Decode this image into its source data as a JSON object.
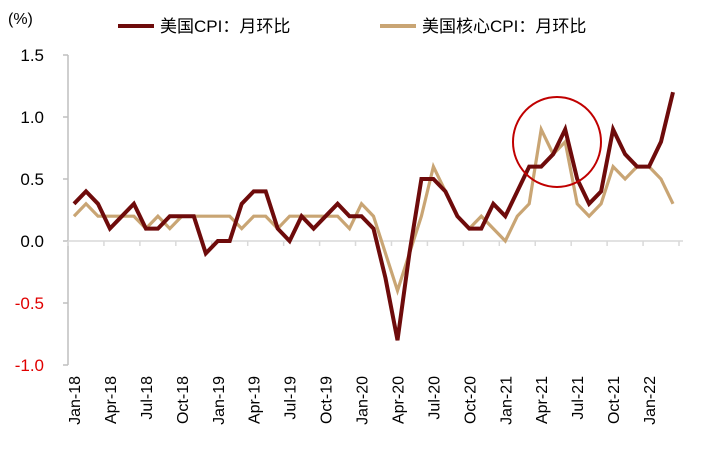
{
  "chart_data": {
    "type": "line",
    "ylabel": "(%)",
    "ylim": [
      -1.0,
      1.5
    ],
    "yticks": [
      "1.5",
      "1.0",
      "0.5",
      "0.0",
      "-0.5",
      "-1.0"
    ],
    "ytick_values": [
      1.5,
      1.0,
      0.5,
      0.0,
      -0.5,
      -1.0
    ],
    "xtick_labels": [
      "Jan-18",
      "Apr-18",
      "Jul-18",
      "Oct-18",
      "Jan-19",
      "Apr-19",
      "Jul-19",
      "Oct-19",
      "Jan-20",
      "Apr-20",
      "Jul-20",
      "Oct-20",
      "Jan-21",
      "Apr-21",
      "Jul-21",
      "Oct-21",
      "Jan-22"
    ],
    "x_start": "Jan-18",
    "x_end": "Mar-22",
    "legend_position": "top",
    "series": [
      {
        "name": "美国CPI：月环比",
        "color": "#6E0B0B",
        "values": [
          0.3,
          0.4,
          0.3,
          0.1,
          0.2,
          0.3,
          0.1,
          0.1,
          0.2,
          0.2,
          0.2,
          -0.1,
          0.0,
          0.0,
          0.3,
          0.4,
          0.4,
          0.1,
          0.0,
          0.2,
          0.1,
          0.2,
          0.3,
          0.2,
          0.2,
          0.1,
          -0.3,
          -0.8,
          -0.1,
          0.5,
          0.5,
          0.4,
          0.2,
          0.1,
          0.1,
          0.3,
          0.2,
          0.4,
          0.6,
          0.6,
          0.7,
          0.9,
          0.5,
          0.3,
          0.4,
          0.9,
          0.7,
          0.6,
          0.6,
          0.8,
          1.2
        ]
      },
      {
        "name": "美国核心CPI：月环比",
        "color": "#C9A574",
        "values": [
          0.2,
          0.3,
          0.2,
          0.2,
          0.2,
          0.2,
          0.1,
          0.2,
          0.1,
          0.2,
          0.2,
          0.2,
          0.2,
          0.2,
          0.1,
          0.2,
          0.2,
          0.1,
          0.2,
          0.2,
          0.2,
          0.2,
          0.2,
          0.1,
          0.3,
          0.2,
          -0.1,
          -0.4,
          -0.1,
          0.2,
          0.6,
          0.4,
          0.2,
          0.1,
          0.2,
          0.1,
          0.0,
          0.2,
          0.3,
          0.9,
          0.7,
          0.8,
          0.3,
          0.2,
          0.3,
          0.6,
          0.5,
          0.6,
          0.6,
          0.5,
          0.3
        ]
      }
    ],
    "annotations": [
      {
        "type": "circle",
        "color": "#C00000",
        "around": "Apr-21 to Jun-21"
      }
    ],
    "negative_tick_color": "#E00000"
  }
}
